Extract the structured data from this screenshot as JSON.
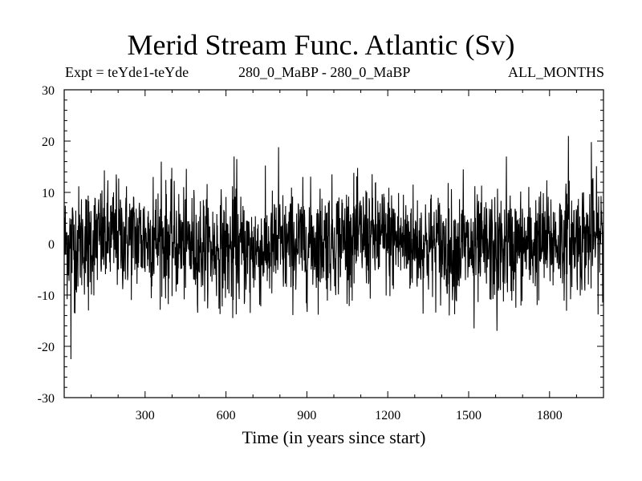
{
  "chart_data": {
    "type": "line",
    "title": "Merid Stream Func. Atlantic (Sv)",
    "subtitle_left": "Expt = teYde1-teYde",
    "subtitle_center": "280_0_MaBP - 280_0_MaBP",
    "subtitle_right": "ALL_MONTHS",
    "xlabel": "Time (in years since start)",
    "ylabel": "",
    "xlim": [
      0,
      2000
    ],
    "ylim": [
      -30,
      30
    ],
    "x_ticks": [
      300,
      600,
      900,
      1200,
      1500,
      1800
    ],
    "x_minor_step": 100,
    "y_ticks": [
      -30,
      -20,
      -10,
      0,
      10,
      20,
      30
    ],
    "y_minor_step": 2,
    "grid": false,
    "series": [
      {
        "line_color": "#000000",
        "x_start": 1,
        "x_step": 1,
        "noise_std": 5.3,
        "drift_amplitude": 1.2,
        "peaks": [
          {
            "x": 25,
            "y": -22.5
          },
          {
            "x": 38,
            "y": -13.5
          },
          {
            "x": 90,
            "y": -13.0
          },
          {
            "x": 193,
            "y": 13.5
          },
          {
            "x": 330,
            "y": 13.0
          },
          {
            "x": 360,
            "y": 16.0
          },
          {
            "x": 630,
            "y": 17.0
          },
          {
            "x": 640,
            "y": 16.5
          },
          {
            "x": 625,
            "y": -14.5
          },
          {
            "x": 690,
            "y": -13.5
          },
          {
            "x": 795,
            "y": 18.8
          },
          {
            "x": 1480,
            "y": 14.5
          },
          {
            "x": 1520,
            "y": -16.5
          },
          {
            "x": 1605,
            "y": -17.0
          },
          {
            "x": 1640,
            "y": 17.0
          },
          {
            "x": 1870,
            "y": 21.0
          },
          {
            "x": 1955,
            "y": 19.8
          }
        ]
      }
    ]
  }
}
